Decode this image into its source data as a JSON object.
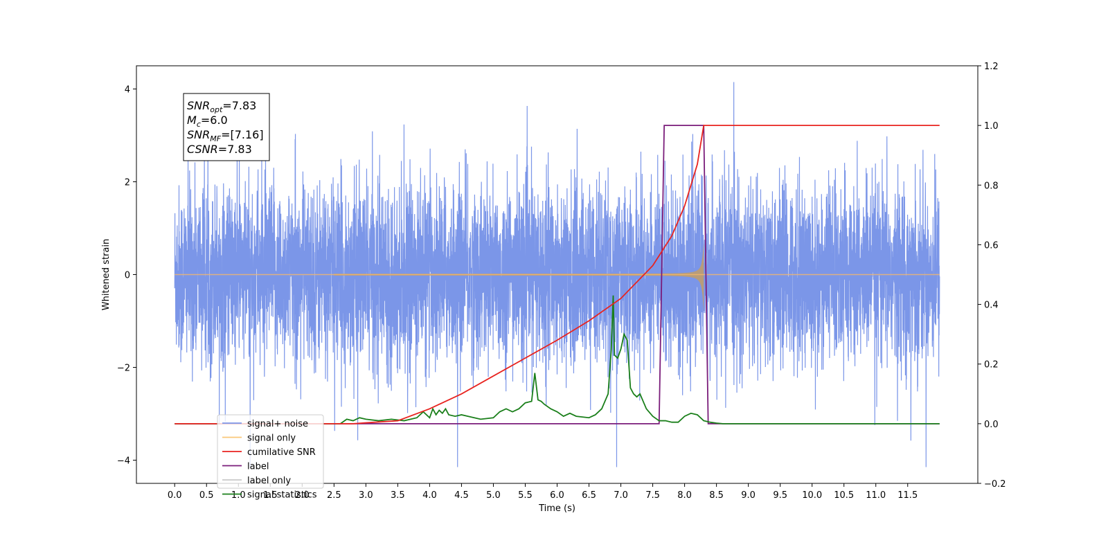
{
  "chart_data": {
    "type": "line",
    "title": "",
    "xlabel": "Time (s)",
    "ylabel": "Whitened strain",
    "y2label": "",
    "xlim": [
      -0.6,
      12.6
    ],
    "ylim": [
      -4.5,
      4.5
    ],
    "y2lim": [
      -0.2,
      1.2
    ],
    "x_ticks": [
      "0.0",
      "0.5",
      "1.0",
      "1.5",
      "2.0",
      "2.5",
      "3.0",
      "3.5",
      "4.0",
      "4.5",
      "5.0",
      "5.5",
      "6.0",
      "6.5",
      "7.0",
      "7.5",
      "8.0",
      "8.5",
      "9.0",
      "9.5",
      "10.0",
      "10.5",
      "11.0",
      "11.5"
    ],
    "y_ticks": [
      "−4",
      "−2",
      "0",
      "2",
      "4"
    ],
    "y2_ticks": [
      "−0.2",
      "0.0",
      "0.2",
      "0.4",
      "0.6",
      "0.8",
      "1.0",
      "1.2"
    ],
    "grid": false,
    "legend_position": "lower-left",
    "series": [
      {
        "name": "signal+ noise",
        "axis": "left",
        "color": "#7b96e8",
        "x_range": [
          0.0,
          12.0
        ],
        "envelope_typical": [
          -1.6,
          1.6
        ],
        "peaks_max": [
          4.1,
          3.9
        ],
        "peaks_min": [
          -4.1,
          -3.5
        ]
      },
      {
        "name": "signal only",
        "axis": "left",
        "color": "#bc9c74",
        "chirp_start": 2.5,
        "chirp_end": 8.3,
        "peak_amplitude": 0.8
      },
      {
        "name": "cumilative SNR",
        "axis": "right",
        "color": "#e8231f",
        "x": [
          0.0,
          2.8,
          3.0,
          3.5,
          4.0,
          4.5,
          5.0,
          5.5,
          6.0,
          6.5,
          7.0,
          7.5,
          7.8,
          8.0,
          8.2,
          8.3,
          12.0
        ],
        "y": [
          0.0,
          0.0,
          0.003,
          0.01,
          0.05,
          0.1,
          0.16,
          0.22,
          0.28,
          0.345,
          0.42,
          0.53,
          0.63,
          0.73,
          0.87,
          1.0,
          1.0
        ]
      },
      {
        "name": "label",
        "axis": "right",
        "color": "#7a1c7a",
        "x": [
          0.0,
          7.6,
          7.68,
          8.3,
          8.37,
          12.0
        ],
        "y": [
          0.0,
          0.0,
          1.0,
          1.0,
          0.0,
          0.0
        ]
      },
      {
        "name": "label only",
        "axis": "right",
        "color": "#c8c8c8"
      },
      {
        "name": "signal statistics",
        "axis": "right",
        "color": "#1a7f1a",
        "x": [
          0.0,
          2.0,
          2.6,
          2.7,
          2.8,
          2.9,
          3.0,
          3.2,
          3.4,
          3.6,
          3.8,
          3.9,
          4.0,
          4.05,
          4.1,
          4.15,
          4.2,
          4.25,
          4.3,
          4.4,
          4.5,
          4.6,
          4.7,
          4.8,
          5.0,
          5.1,
          5.2,
          5.3,
          5.4,
          5.5,
          5.6,
          5.65,
          5.7,
          5.75,
          5.8,
          5.9,
          6.0,
          6.1,
          6.2,
          6.3,
          6.5,
          6.6,
          6.7,
          6.8,
          6.85,
          6.88,
          6.9,
          6.95,
          7.0,
          7.05,
          7.1,
          7.15,
          7.2,
          7.25,
          7.3,
          7.4,
          7.5,
          7.6,
          7.7,
          7.8,
          7.9,
          8.0,
          8.1,
          8.2,
          8.3,
          8.4,
          8.5,
          8.6,
          12.0
        ],
        "y": [
          0.0,
          0.0,
          0.0,
          0.015,
          0.01,
          0.02,
          0.015,
          0.01,
          0.015,
          0.01,
          0.02,
          0.04,
          0.02,
          0.05,
          0.03,
          0.045,
          0.035,
          0.05,
          0.03,
          0.025,
          0.03,
          0.025,
          0.02,
          0.015,
          0.02,
          0.04,
          0.05,
          0.04,
          0.05,
          0.07,
          0.075,
          0.17,
          0.08,
          0.075,
          0.065,
          0.05,
          0.04,
          0.025,
          0.035,
          0.025,
          0.02,
          0.03,
          0.05,
          0.1,
          0.25,
          0.43,
          0.23,
          0.22,
          0.25,
          0.3,
          0.28,
          0.12,
          0.1,
          0.09,
          0.1,
          0.05,
          0.025,
          0.01,
          0.01,
          0.005,
          0.005,
          0.025,
          0.035,
          0.03,
          0.01,
          0.005,
          0.002,
          0.0,
          0.0
        ]
      }
    ],
    "annotation_box": {
      "lines": [
        {
          "base": "SNR",
          "sub": "opt",
          "value": "=7.83"
        },
        {
          "base": "M",
          "sub": "c",
          "value": "=6.0"
        },
        {
          "base": "SNR",
          "sub": "MF",
          "value": "=[7.16]"
        },
        {
          "base": "CSNR",
          "sub": "",
          "value": "=7.83"
        }
      ]
    }
  }
}
